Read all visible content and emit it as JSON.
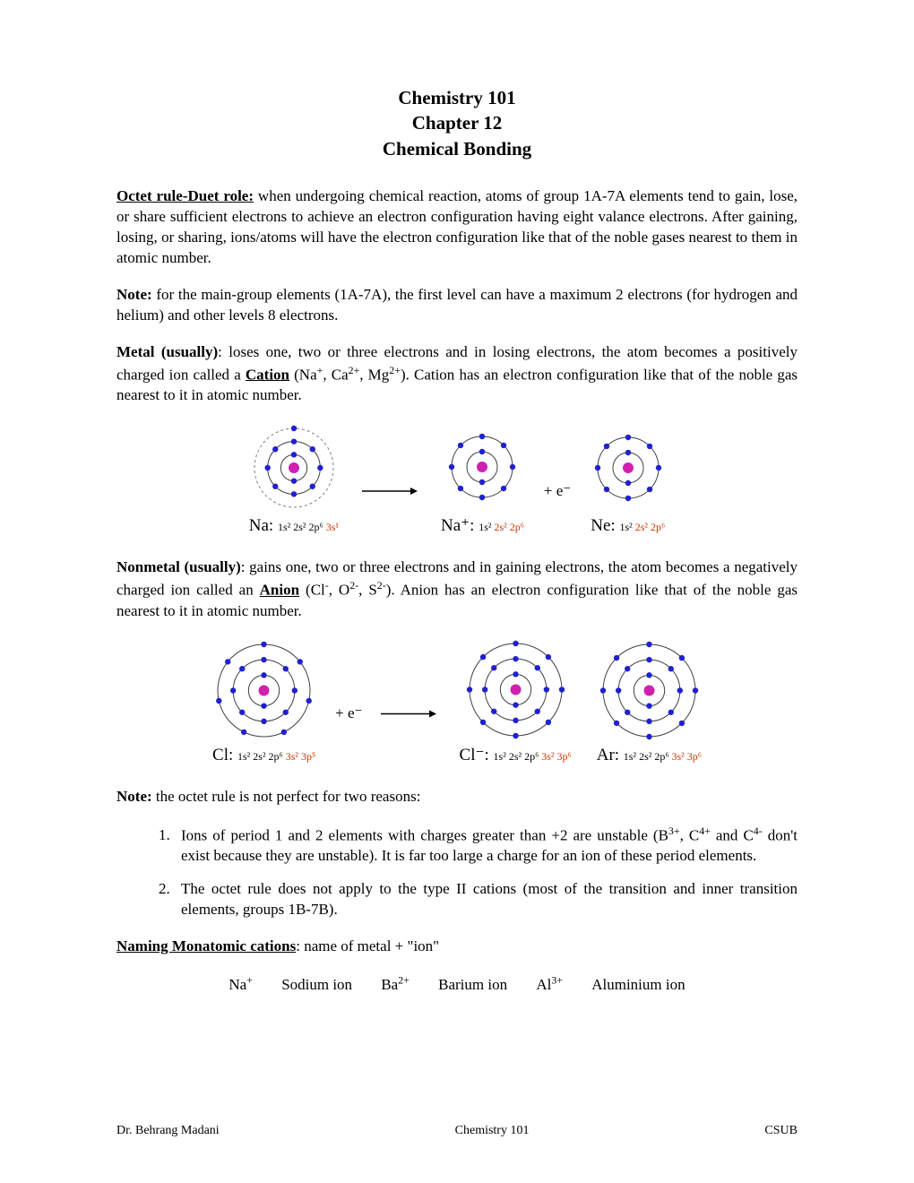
{
  "title_lines": [
    "Chemistry 101",
    "Chapter 12",
    "Chemical Bonding"
  ],
  "colors": {
    "text": "#000000",
    "electron": "#2020d0",
    "nucleus": "#d020b0",
    "shell": "#404040",
    "outer_dash": "#808080",
    "config_red": "#cc3300",
    "background": "#ffffff"
  },
  "para_octet": {
    "lead": "Octet rule-Duet role:",
    "text": " when undergoing chemical reaction, atoms of group 1A-7A elements tend to gain, lose, or share sufficient electrons to achieve an electron configuration having eight valance electrons. After gaining, losing, or sharing, ions/atoms will have the electron configuration like that of the noble gases nearest to them in atomic number."
  },
  "para_note1": {
    "lead": "Note:",
    "text": " for the main-group elements (1A-7A), the first level can have a maximum 2 electrons (for hydrogen and helium) and other levels 8 electrons."
  },
  "para_metal": {
    "lead": "Metal (usually)",
    "mid1": ": loses one, two or three electrons and in losing electrons, the atom becomes a positively charged ion called a ",
    "cation": "Cation",
    "mid2": " (Na",
    "tail": "). Cation has an electron configuration like that of the noble gas nearest to it in atomic number."
  },
  "para_nonmetal": {
    "lead": "Nonmetal (usually)",
    "mid1": ": gains one, two or three electrons and in gaining electrons, the atom becomes a negatively charged ion called an ",
    "anion": "Anion",
    "mid2": " (Cl",
    "tail": "). Anion has an electron configuration like that of the noble gas nearest to it in atomic number."
  },
  "para_note2": {
    "lead": "Note:",
    "text": " the octet rule is not perfect for two reasons:"
  },
  "list_items": {
    "i1a": "Ions of period 1 and 2 elements with charges greater than +2 are unstable (B",
    "i1b": " don't exist because they are unstable). It is far too large a charge for an ion of these period elements.",
    "i2": "The octet rule does not apply to the type II cations (most of the transition and inner transition elements, groups 1B-7B)."
  },
  "naming": {
    "lead": "Naming Monatomic cations",
    "tail": ": name of metal + \"ion\""
  },
  "examples": {
    "na": "Sodium ion",
    "ba": "Barium ion",
    "al": "Aluminium ion"
  },
  "footer": {
    "left": "Dr. Behrang Madani",
    "center": "Chemistry 101",
    "right": "CSUB"
  },
  "diagram1": {
    "atoms": [
      {
        "symbol": "Na:",
        "shells": [
          2,
          8,
          1
        ],
        "outer_dashed": true,
        "size": 100,
        "conf_black": "1s² 2s² 2p⁶ ",
        "conf_red": "3s¹"
      },
      {
        "symbol": "Na⁺:",
        "shells": [
          2,
          8
        ],
        "outer_dashed": false,
        "size": 80,
        "conf_black": "1s² ",
        "conf_red": "2s² 2p⁶"
      },
      {
        "symbol": "Ne:",
        "shells": [
          2,
          8
        ],
        "outer_dashed": false,
        "size": 80,
        "conf_black": "1s² ",
        "conf_red": "2s² 2p⁶"
      }
    ],
    "arrow_after": 0,
    "plus_e_after": 1,
    "plus_e_text": "+   e⁻"
  },
  "diagram2": {
    "atoms": [
      {
        "symbol": "Cl:",
        "shells": [
          2,
          8,
          7
        ],
        "outer_dashed": false,
        "size": 115,
        "conf_black": "1s² 2s² 2p⁶ ",
        "conf_red": "3s² 3p⁵"
      },
      {
        "symbol": "Cl⁻:",
        "shells": [
          2,
          8,
          8
        ],
        "outer_dashed": false,
        "size": 115,
        "conf_black": "1s² 2s² 2p⁶ ",
        "conf_red": "3s² 3p⁶"
      },
      {
        "symbol": "Ar:",
        "shells": [
          2,
          8,
          8
        ],
        "outer_dashed": false,
        "size": 115,
        "conf_black": "1s² 2s² 2p⁶ ",
        "conf_red": "3s² 3p⁶"
      }
    ],
    "plus_e_before_arrow": true,
    "plus_e_text": "+   e⁻",
    "arrow_after": 0
  }
}
